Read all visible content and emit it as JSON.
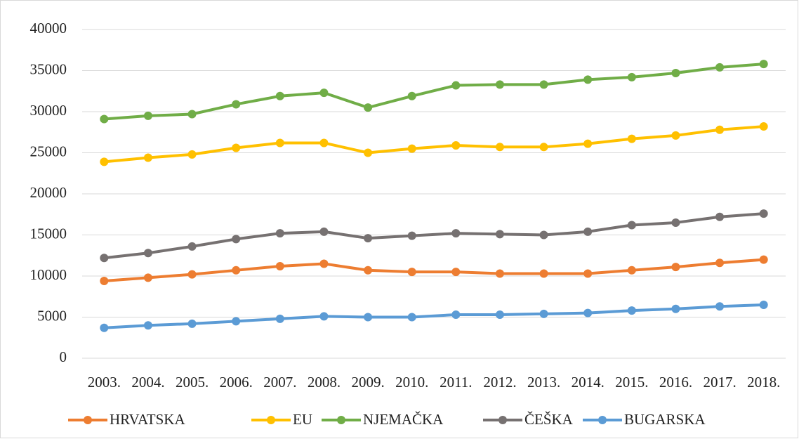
{
  "chart_data": {
    "type": "line",
    "categories": [
      "2003.",
      "2004.",
      "2005.",
      "2006.",
      "2007.",
      "2008.",
      "2009.",
      "2010.",
      "2011.",
      "2012.",
      "2013.",
      "2014.",
      "2015.",
      "2016.",
      "2017.",
      "2018."
    ],
    "series": [
      {
        "name": "HRVATSKA",
        "color": "#ed7d31",
        "values": [
          9400,
          9800,
          10200,
          10700,
          11200,
          11500,
          10700,
          10500,
          10500,
          10300,
          10300,
          10300,
          10700,
          11100,
          11600,
          12000
        ]
      },
      {
        "name": "EU",
        "color": "#ffc000",
        "values": [
          23900,
          24400,
          24800,
          25600,
          26200,
          26200,
          25000,
          25500,
          25900,
          25700,
          25700,
          26100,
          26700,
          27100,
          27800,
          28200
        ]
      },
      {
        "name": "NJEMAČKA",
        "color": "#70ad47",
        "values": [
          29100,
          29500,
          29700,
          30900,
          31900,
          32300,
          30500,
          31900,
          33200,
          33300,
          33300,
          33900,
          34200,
          34700,
          35400,
          35800
        ]
      },
      {
        "name": "ČEŠKA",
        "color": "#767171",
        "values": [
          12200,
          12800,
          13600,
          14500,
          15200,
          15400,
          14600,
          14900,
          15200,
          15100,
          15000,
          15400,
          16200,
          16500,
          17200,
          17600
        ]
      },
      {
        "name": "BUGARSKA",
        "color": "#5b9bd5",
        "values": [
          3700,
          4000,
          4200,
          4500,
          4800,
          5100,
          5000,
          5000,
          5300,
          5300,
          5400,
          5500,
          5800,
          6000,
          6300,
          6500
        ]
      }
    ],
    "ylim": [
      0,
      40000
    ],
    "yticks": [
      0,
      5000,
      10000,
      15000,
      20000,
      25000,
      30000,
      35000,
      40000
    ],
    "grid": true,
    "legend": "bottom"
  }
}
